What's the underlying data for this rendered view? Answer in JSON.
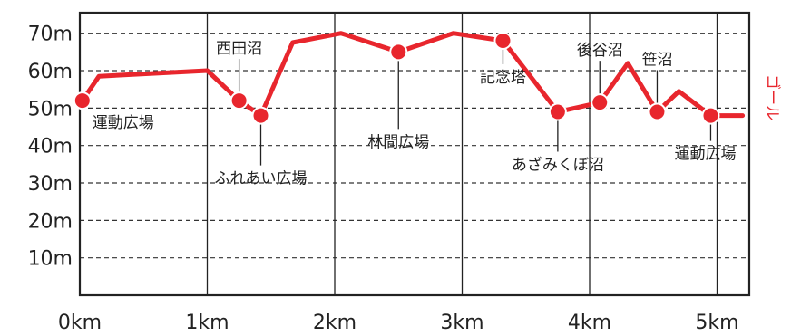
{
  "chart_data": {
    "type": "line",
    "title": "",
    "xlabel": "",
    "ylabel": "",
    "xlim": [
      0,
      5.25
    ],
    "ylim": [
      0,
      75
    ],
    "grid": true,
    "line_color": "#e8262d",
    "x_ticks": [
      {
        "x": 0,
        "label": "0km"
      },
      {
        "x": 1,
        "label": "1km"
      },
      {
        "x": 2,
        "label": "2km"
      },
      {
        "x": 3,
        "label": "3km"
      },
      {
        "x": 4,
        "label": "4km"
      },
      {
        "x": 5,
        "label": "5km"
      }
    ],
    "y_ticks": [
      {
        "y": 10,
        "label": "10m"
      },
      {
        "y": 20,
        "label": "20m"
      },
      {
        "y": 30,
        "label": "30m"
      },
      {
        "y": 40,
        "label": "40m"
      },
      {
        "y": 50,
        "label": "50m"
      },
      {
        "y": 60,
        "label": "60m"
      },
      {
        "y": 70,
        "label": "70m"
      }
    ],
    "series": [
      {
        "x": [
          0.02,
          0.15,
          1.0,
          1.25,
          1.42,
          1.67,
          2.05,
          2.5,
          2.93,
          3.32,
          3.75,
          4.08,
          4.3,
          4.53,
          4.7,
          4.95,
          5.2
        ],
        "y": [
          52,
          58.5,
          60,
          52,
          48,
          67.5,
          70,
          65,
          70,
          68,
          49,
          51.5,
          62,
          49,
          54.5,
          48,
          48
        ]
      }
    ],
    "annotations": [
      {
        "text": "運動広場",
        "x": 0.02,
        "y": 52,
        "placement": "below"
      },
      {
        "text": "西田沼",
        "x": 1.25,
        "y": 52,
        "placement": "above"
      },
      {
        "text": "ふれあい広場",
        "x": 1.42,
        "y": 48,
        "placement": "below"
      },
      {
        "text": "林間広場",
        "x": 2.5,
        "y": 65,
        "placement": "below"
      },
      {
        "text": "記念塔",
        "x": 3.32,
        "y": 68,
        "placement": "below"
      },
      {
        "text": "あざみくぼ沼",
        "x": 3.75,
        "y": 49,
        "placement": "below"
      },
      {
        "text": "後谷沼",
        "x": 4.08,
        "y": 51.5,
        "placement": "above"
      },
      {
        "text": "笹沼",
        "x": 4.53,
        "y": 49,
        "placement": "above"
      },
      {
        "text": "運動広場",
        "x": 4.95,
        "y": 48,
        "placement": "below"
      }
    ],
    "goal_label": "ゴール"
  }
}
